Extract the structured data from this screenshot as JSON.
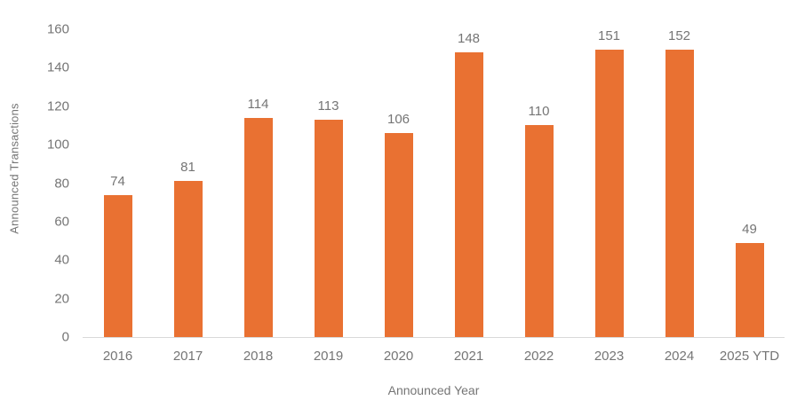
{
  "chart_data": {
    "type": "bar",
    "title": "",
    "categories": [
      "2016",
      "2017",
      "2018",
      "2019",
      "2020",
      "2021",
      "2022",
      "2023",
      "2024",
      "2025 YTD"
    ],
    "values": [
      74,
      81,
      114,
      113,
      106,
      148,
      110,
      151,
      152,
      49
    ],
    "xlabel": "Announced Year",
    "ylabel": "Announced Transactions",
    "ylim": [
      0,
      160
    ],
    "yticks": [
      0,
      20,
      40,
      60,
      80,
      100,
      120,
      140,
      160
    ],
    "grid": false,
    "legend_position": "none",
    "data_labels_shown": true,
    "bar_color": "#E97132",
    "text_color": "#757575",
    "axis_line_color": "#D9D9D9"
  }
}
